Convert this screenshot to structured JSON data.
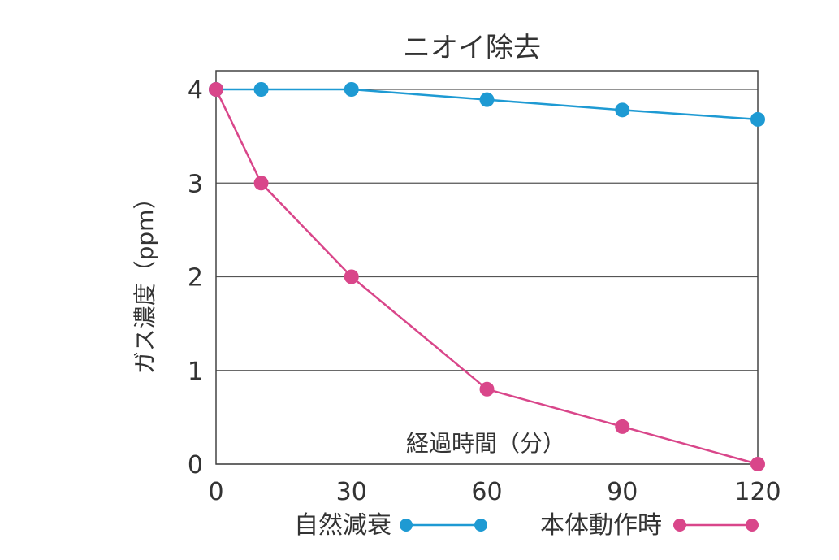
{
  "chart_data": {
    "type": "line",
    "title": "ニオイ除去",
    "xlabel": "経過時間（分）",
    "ylabel": "ガス濃度（ppm）",
    "x_ticks": [
      "0",
      "30",
      "60",
      "90",
      "120"
    ],
    "y_ticks": [
      "0",
      "1",
      "2",
      "3",
      "4"
    ],
    "xlim": [
      0,
      120
    ],
    "ylim": [
      0,
      4
    ],
    "grid": true,
    "legend_position": "bottom",
    "series": [
      {
        "name": "自然減衰",
        "color": "#1e9ad3",
        "x": [
          0,
          10,
          30,
          60,
          90,
          120
        ],
        "y": [
          4,
          4,
          4,
          3.89,
          3.78,
          3.68
        ]
      },
      {
        "name": "本体動作時",
        "color": "#d9468a",
        "x": [
          0,
          10,
          30,
          60,
          90,
          120
        ],
        "y": [
          4,
          3,
          2,
          0.8,
          0.4,
          0
        ]
      }
    ]
  }
}
